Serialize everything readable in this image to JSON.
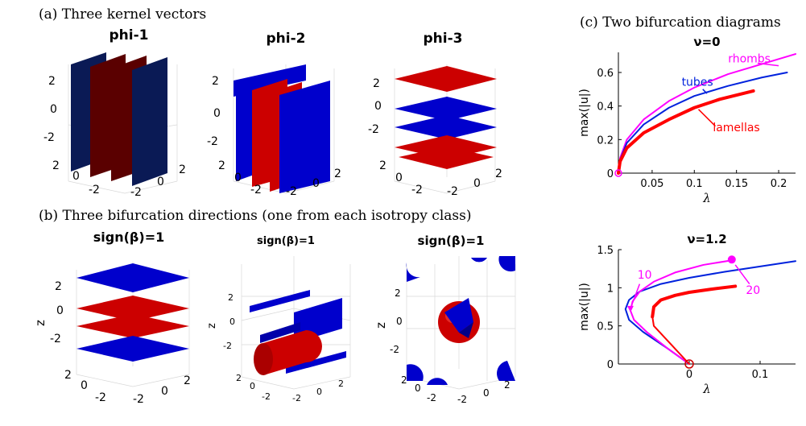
{
  "captions": {
    "a": "(a) Three kernel vectors",
    "b": "(b) Three bifurcation directions (one from each isotropy class)",
    "c": "(c) Two bifurcation diagrams"
  },
  "panel_a": {
    "titles": [
      "phi-1",
      "phi-2",
      "phi-3"
    ],
    "z_ticks": [
      "2",
      "0",
      "-2"
    ],
    "x_ticks": [
      "2",
      "0",
      "-2"
    ],
    "y_ticks": [
      "-2",
      "0",
      "2"
    ]
  },
  "panel_b": {
    "titles": [
      "sign(β)=1",
      "sign(β)=1",
      "sign(β)=1"
    ],
    "z_label": "z",
    "z_ticks": [
      "2",
      "0",
      "-2"
    ],
    "x_ticks": [
      "2",
      "0",
      "-2"
    ],
    "y_ticks": [
      "-2",
      "0",
      "2"
    ]
  },
  "colors": {
    "red": "#cc0000",
    "blue": "#0000cc",
    "dark_red": "#5a0000",
    "dark_blue": "#0a1a55",
    "magenta": "#ff00ff",
    "line_blue": "#0022dd",
    "line_red": "#ff0000"
  },
  "chart_data": [
    {
      "type": "line",
      "title": "ν=0",
      "xlabel": "λ",
      "ylabel": "max(|u|)",
      "xlim": [
        0.01,
        0.22
      ],
      "ylim": [
        0,
        0.72
      ],
      "xticks": [
        0.05,
        0.1,
        0.15,
        0.2
      ],
      "yticks": [
        0,
        0.2,
        0.4,
        0.6
      ],
      "xtick_labels": [
        "0.05",
        "0.1",
        "0.15",
        "0.2"
      ],
      "ytick_labels": [
        "0",
        "0.2",
        "0.4",
        "0.6"
      ],
      "series": [
        {
          "name": "rhombs",
          "color": "#ff00ff",
          "width": 2,
          "x": [
            0.01,
            0.012,
            0.02,
            0.04,
            0.07,
            0.1,
            0.14,
            0.18,
            0.22
          ],
          "y": [
            0,
            0.09,
            0.2,
            0.32,
            0.43,
            0.51,
            0.59,
            0.65,
            0.71
          ]
        },
        {
          "name": "tubes",
          "color": "#0022dd",
          "width": 2,
          "x": [
            0.01,
            0.012,
            0.02,
            0.04,
            0.07,
            0.1,
            0.14,
            0.18,
            0.21
          ],
          "y": [
            0,
            0.08,
            0.18,
            0.29,
            0.39,
            0.46,
            0.52,
            0.57,
            0.6
          ]
        },
        {
          "name": "lamellas",
          "color": "#ff0000",
          "width": 4,
          "x": [
            0.01,
            0.012,
            0.02,
            0.04,
            0.07,
            0.1,
            0.13,
            0.17
          ],
          "y": [
            0,
            0.07,
            0.15,
            0.24,
            0.32,
            0.39,
            0.44,
            0.49
          ]
        }
      ],
      "annotations": [
        {
          "text": "rhombs",
          "color": "#ff00ff"
        },
        {
          "text": "tubes",
          "color": "#0022dd"
        },
        {
          "text": "lamellas",
          "color": "#ff0000"
        }
      ]
    },
    {
      "type": "line",
      "title": "ν=1.2",
      "xlabel": "λ",
      "ylabel": "max(|u|)",
      "xlim": [
        -0.1,
        0.15
      ],
      "ylim": [
        0,
        1.5
      ],
      "xticks": [
        0,
        0.1
      ],
      "yticks": [
        0,
        0.5,
        1,
        1.5
      ],
      "xtick_labels": [
        "0",
        "0.1"
      ],
      "ytick_labels": [
        "0",
        "0.5",
        "1",
        "1.5"
      ],
      "series": [
        {
          "name": "",
          "color": "#0022dd",
          "width": 2,
          "x": [
            0,
            -0.03,
            -0.065,
            -0.085,
            -0.09,
            -0.085,
            -0.07,
            -0.04,
            0,
            0.05,
            0.1,
            0.15
          ],
          "y": [
            0,
            0.2,
            0.42,
            0.58,
            0.72,
            0.84,
            0.95,
            1.05,
            1.13,
            1.21,
            1.28,
            1.35
          ]
        },
        {
          "name": "",
          "color": "#ff00ff",
          "width": 2,
          "x": [
            0,
            -0.03,
            -0.06,
            -0.078,
            -0.083,
            -0.08,
            -0.07,
            -0.05,
            -0.02,
            0.02,
            0.06
          ],
          "y": [
            0,
            0.2,
            0.42,
            0.58,
            0.7,
            0.82,
            0.95,
            1.08,
            1.2,
            1.3,
            1.36
          ]
        },
        {
          "name": "",
          "color": "#ff0000",
          "width": 4,
          "x": [
            -0.052,
            -0.05,
            -0.04,
            -0.02,
            0,
            0.03,
            0.065
          ],
          "y": [
            0.62,
            0.75,
            0.84,
            0.9,
            0.94,
            0.98,
            1.02
          ]
        },
        {
          "name": "",
          "color": "#ff0000",
          "width": 2,
          "x": [
            0,
            -0.025,
            -0.05,
            -0.052
          ],
          "y": [
            0,
            0.25,
            0.5,
            0.62
          ]
        }
      ],
      "annotations": [
        {
          "text": "10",
          "color": "#ff00ff"
        },
        {
          "text": "20",
          "color": "#ff00ff"
        }
      ]
    }
  ]
}
